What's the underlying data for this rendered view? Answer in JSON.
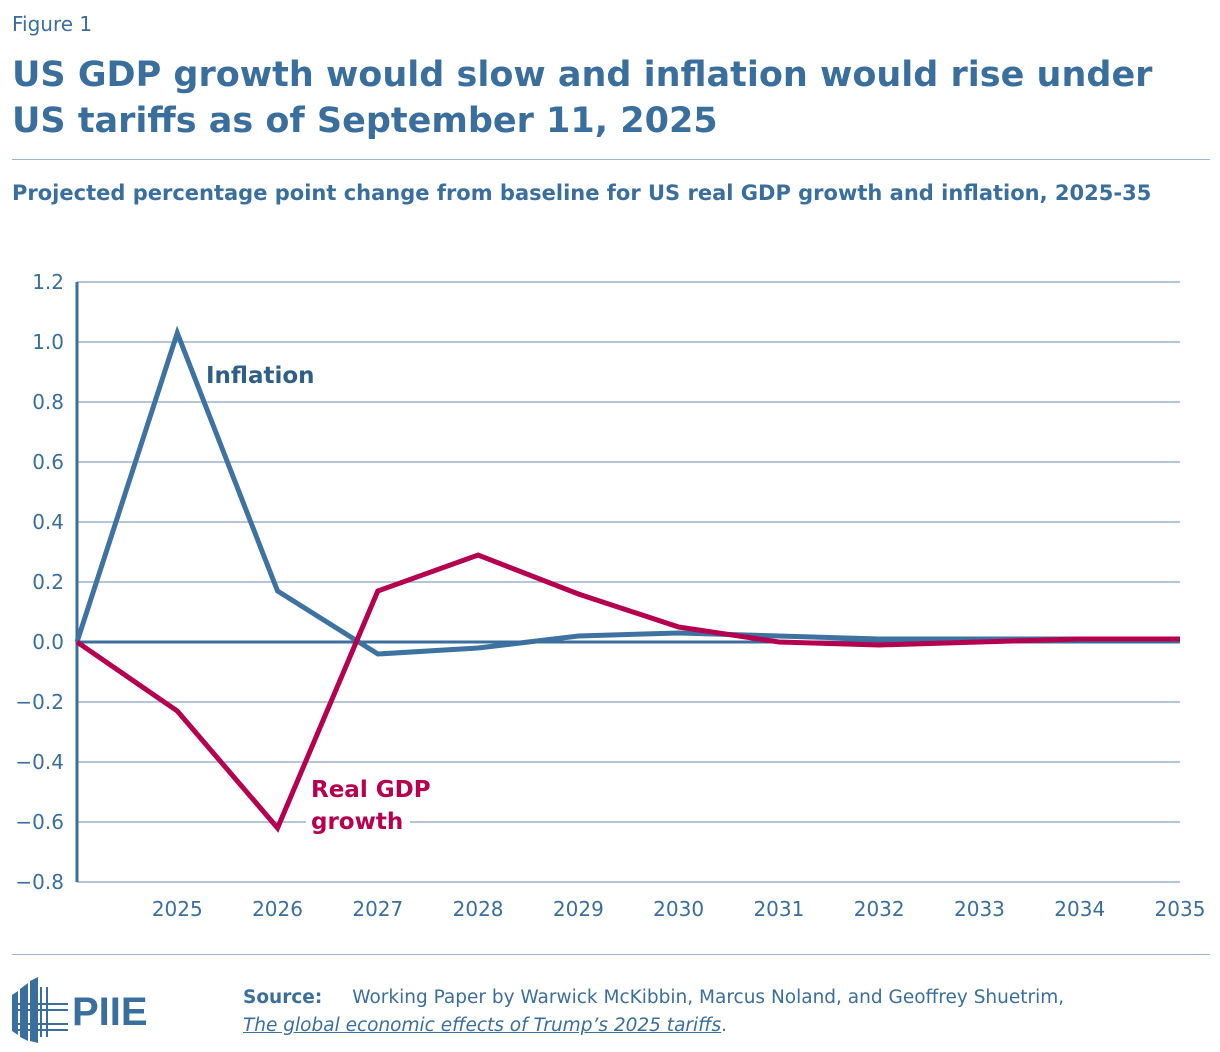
{
  "figure_label": "Figure 1",
  "title": "US GDP growth would slow and inflation would rise under US tariffs as of September 11, 2025",
  "subtitle": "Projected percentage point change from baseline for US real GDP growth and inflation, 2025-35",
  "chart_data": {
    "type": "line",
    "x": [
      2024,
      2025,
      2026,
      2027,
      2028,
      2029,
      2030,
      2031,
      2032,
      2033,
      2034,
      2035
    ],
    "x_tick_labels": [
      "2025",
      "2026",
      "2027",
      "2028",
      "2029",
      "2030",
      "2031",
      "2032",
      "2033",
      "2034",
      "2035"
    ],
    "y_tick_labels": [
      "1.2",
      "1.0",
      "0.8",
      "0.6",
      "0.4",
      "0.2",
      "0.0",
      "−0.2",
      "−0.4",
      "−0.6",
      "−0.8"
    ],
    "ylim": [
      -0.8,
      1.2
    ],
    "grid": true,
    "series": [
      {
        "name": "Inflation",
        "color": "#3e72a0",
        "values": [
          0,
          1.03,
          0.17,
          -0.04,
          -0.02,
          0.02,
          0.03,
          0.02,
          0.01,
          0.01,
          0.01,
          0.01
        ]
      },
      {
        "name": "Real GDP growth",
        "label_lines": [
          "Real GDP",
          "growth"
        ],
        "color": "#b5004f",
        "values": [
          0,
          -0.23,
          -0.62,
          0.17,
          0.29,
          0.16,
          0.05,
          0.0,
          -0.01,
          0.0,
          0.01,
          0.01
        ]
      }
    ]
  },
  "logo_text": "PIIE",
  "source": {
    "label": "Source:",
    "text": "Working Paper by Warwick McKibbin, Marcus Noland, and Geoffrey Shuetrim,",
    "link": "The global economic effects of Trump’s 2025 tariffs",
    "end": "."
  }
}
